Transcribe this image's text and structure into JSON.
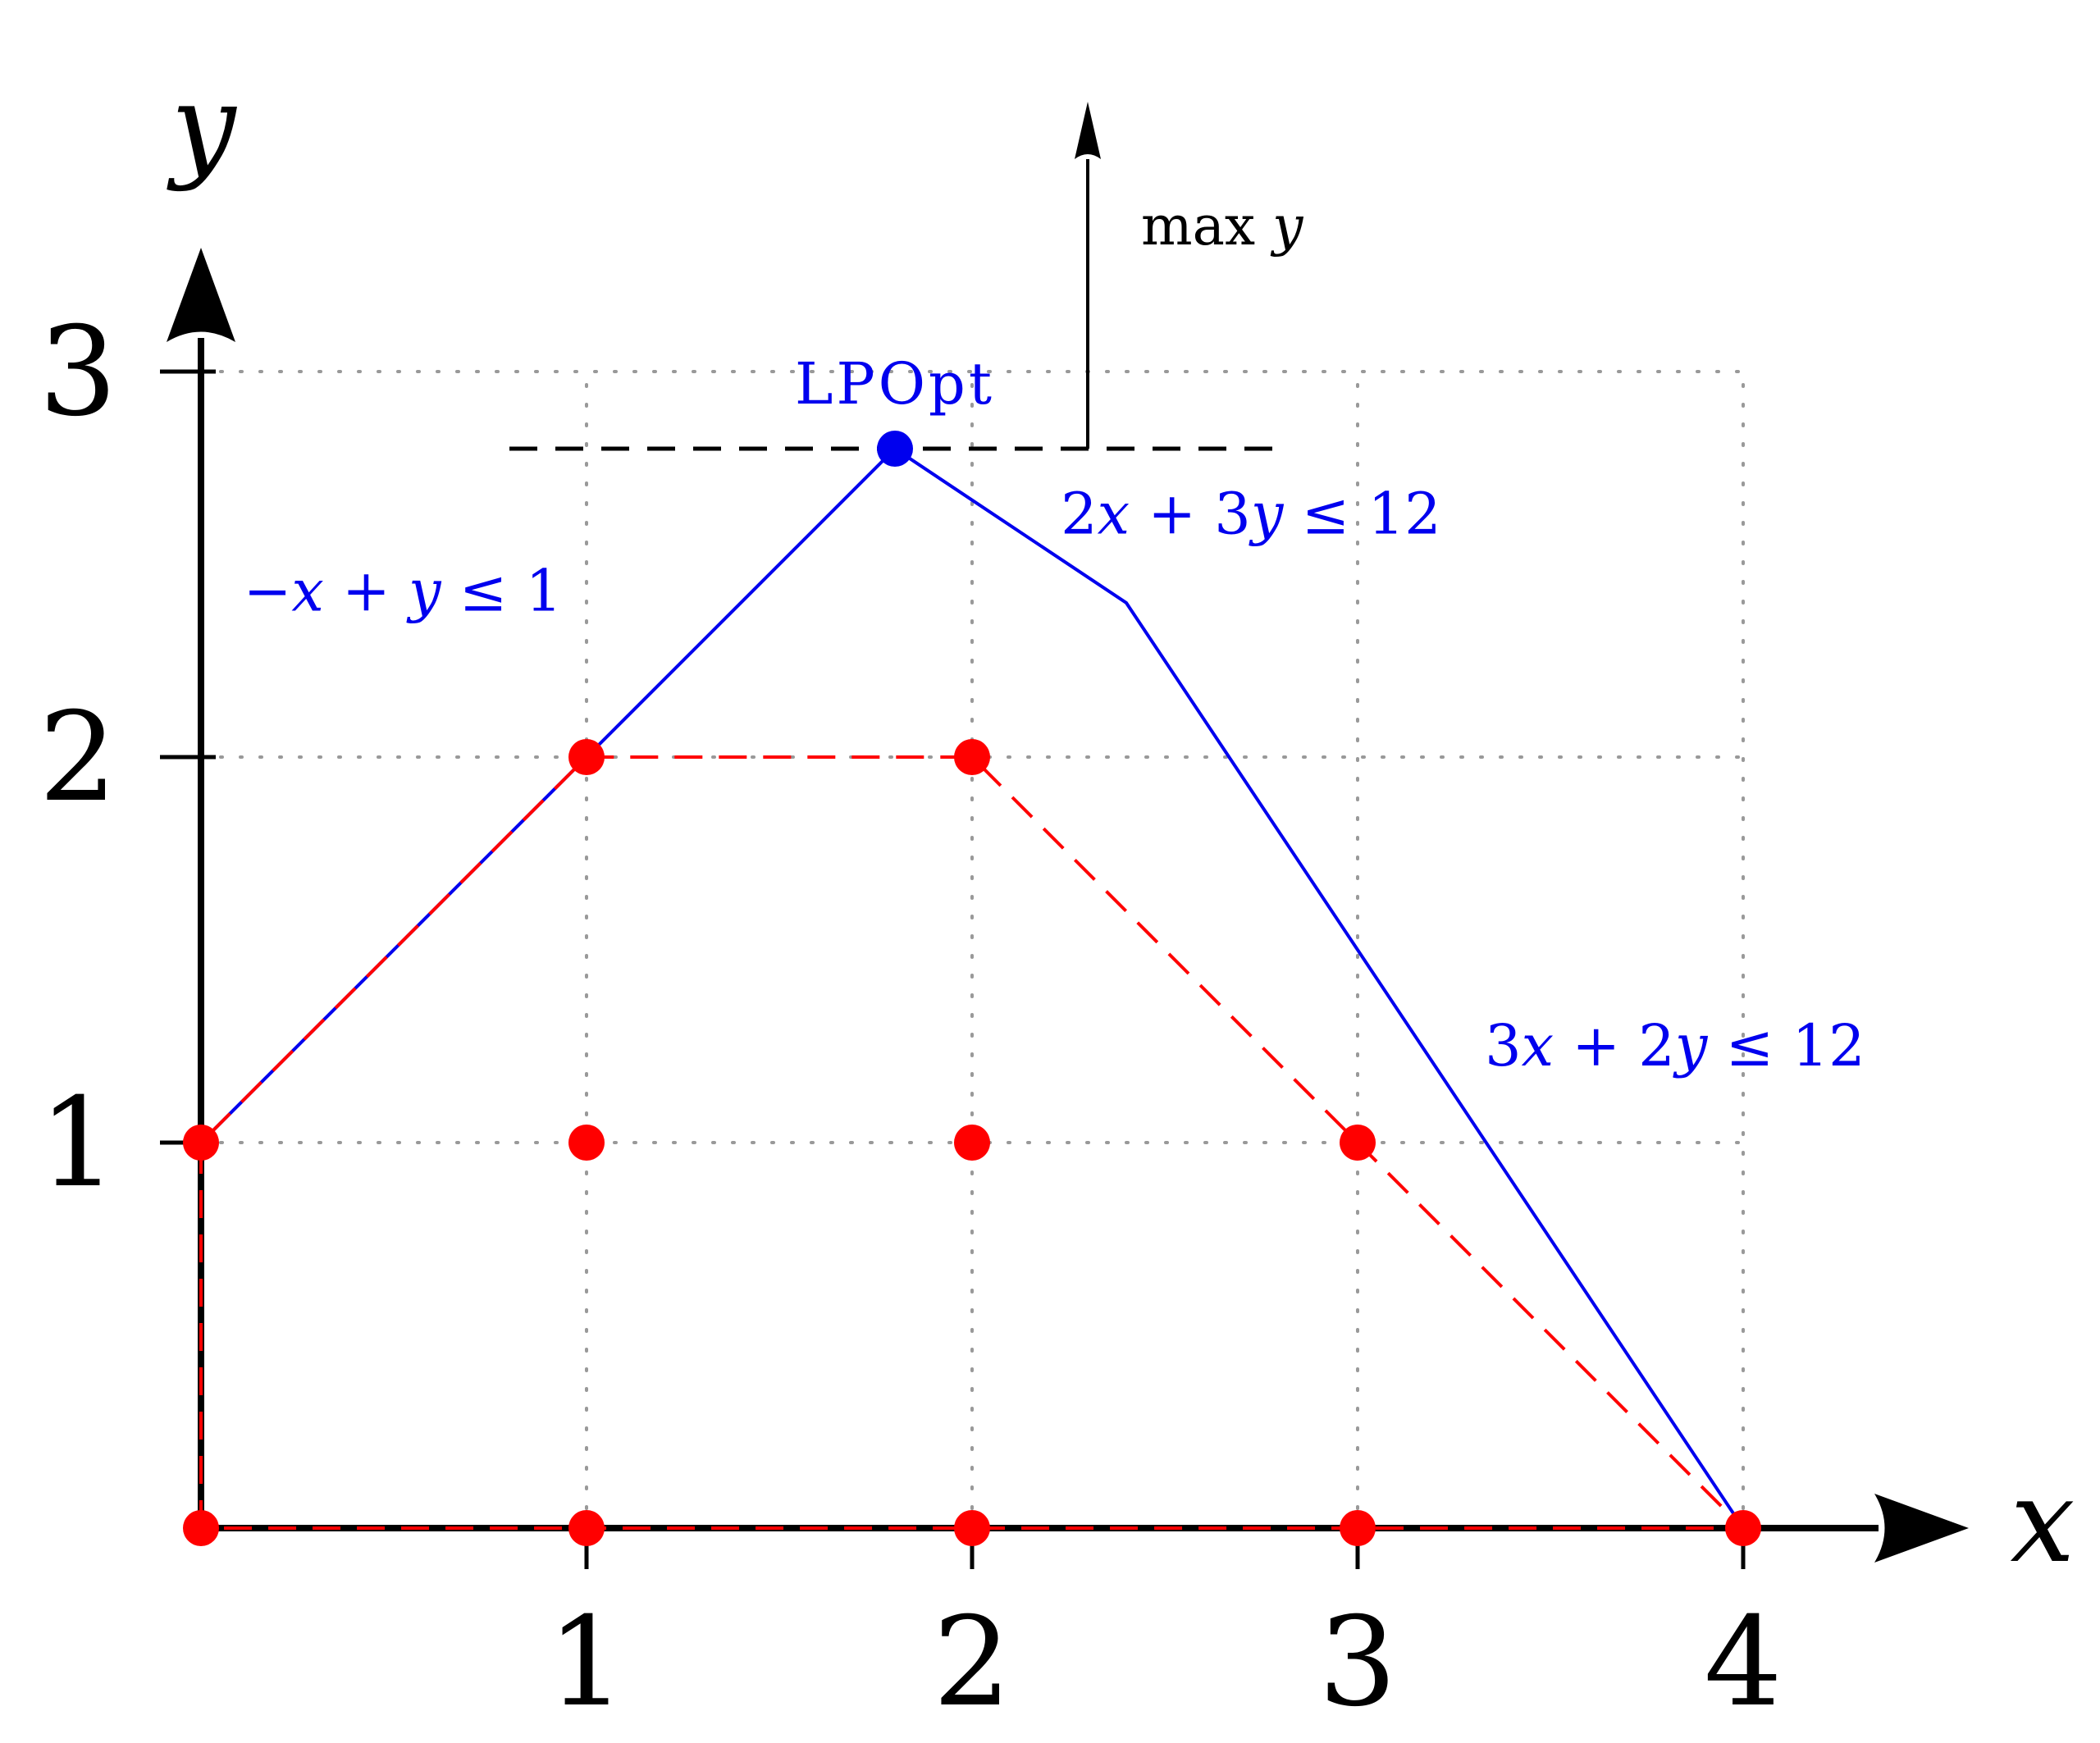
{
  "chart_data": {
    "type": "scatter",
    "x_axis": {
      "label": "x",
      "ticks": [
        "1",
        "2",
        "3",
        "4"
      ],
      "range": [
        0,
        4.5
      ]
    },
    "y_axis": {
      "label": "y",
      "ticks": [
        "1",
        "2",
        "3"
      ],
      "range": [
        0,
        3.3
      ]
    },
    "grid": "dotted",
    "lp_polygon": [
      [
        0,
        0
      ],
      [
        0,
        1
      ],
      [
        1.8,
        2.8
      ],
      [
        2.4,
        2.4
      ],
      [
        4,
        0
      ]
    ],
    "integer_hull": [
      [
        0,
        0
      ],
      [
        0,
        1
      ],
      [
        1,
        2
      ],
      [
        2,
        2
      ],
      [
        3,
        1
      ],
      [
        4,
        0
      ]
    ],
    "integer_points": [
      [
        0,
        0
      ],
      [
        1,
        0
      ],
      [
        2,
        0
      ],
      [
        3,
        0
      ],
      [
        4,
        0
      ],
      [
        0,
        1
      ],
      [
        1,
        1
      ],
      [
        2,
        1
      ],
      [
        3,
        1
      ],
      [
        1,
        2
      ],
      [
        2,
        2
      ]
    ],
    "lp_optimum": {
      "point": [
        1.8,
        2.8
      ],
      "label": "LPOpt"
    },
    "objective": {
      "label": "max y",
      "level": 2.8,
      "from_x": 0.8,
      "to_x": 2.8,
      "arrow_x": 2.3,
      "arrow_to_y": 3.7
    },
    "constraints": [
      {
        "label": "−x + y ≤ 1",
        "anchor": [
          0.11,
          2.38
        ]
      },
      {
        "label": "2x + 3y ≤ 12",
        "anchor": [
          2.23,
          2.58
        ]
      },
      {
        "label": "3x + 2y ≤ 12",
        "anchor": [
          3.33,
          1.2
        ]
      }
    ],
    "colors": {
      "lp": "#0000ee",
      "integer": "#ff0000",
      "objective": "#000000",
      "grid": "#999999"
    }
  }
}
